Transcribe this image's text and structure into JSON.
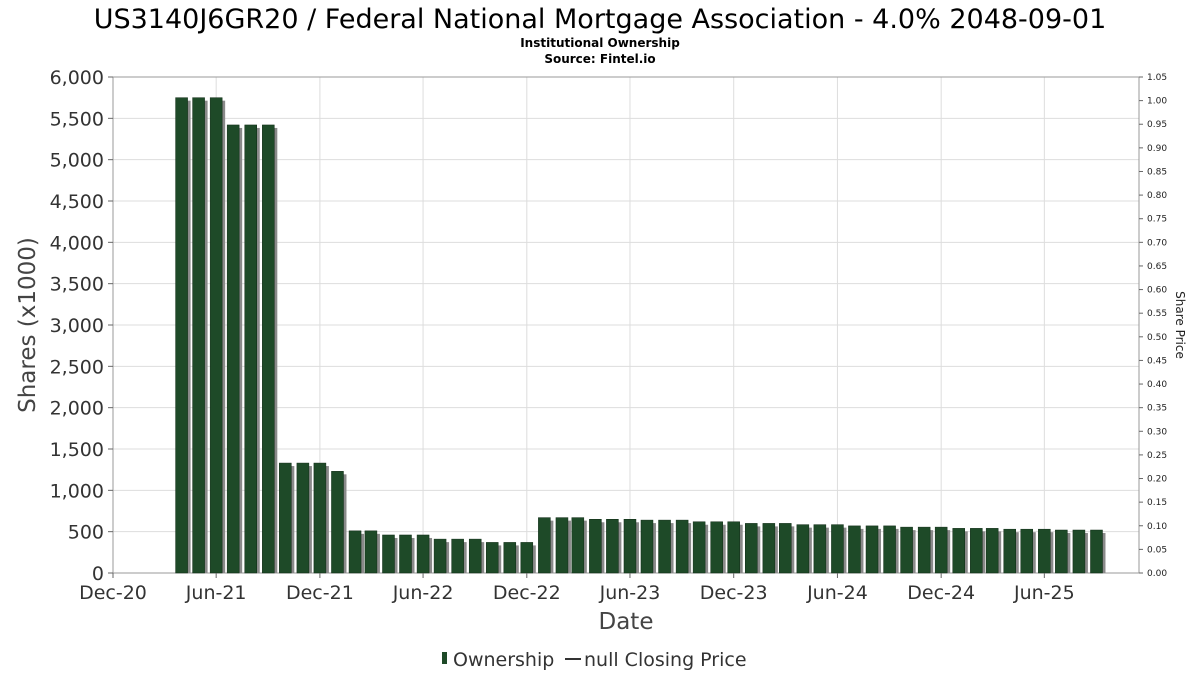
{
  "chart_data": {
    "type": "bar",
    "title": "US3140J6GR20 / Federal National Mortgage Association - 4.0% 2048-09-01",
    "subtitle": "Institutional Ownership",
    "source": "Source: Fintel.io",
    "xlabel": "Date",
    "ylabel": "Shares (x1000)",
    "y2label": "Share Price",
    "ylim": [
      0,
      6000
    ],
    "y2lim": [
      0,
      1.05
    ],
    "xlim": [
      "2020-12-01",
      "2025-11-15"
    ],
    "grid": true,
    "yticks": [
      "0",
      "500",
      "1,000",
      "1,500",
      "2,000",
      "2,500",
      "3,000",
      "3,500",
      "4,000",
      "4,500",
      "5,000",
      "5,500",
      "6,000"
    ],
    "y2ticks": [
      "0.00",
      "0.05",
      "0.10",
      "0.15",
      "0.20",
      "0.25",
      "0.30",
      "0.35",
      "0.40",
      "0.45",
      "0.50",
      "0.55",
      "0.60",
      "0.65",
      "0.70",
      "0.75",
      "0.80",
      "0.85",
      "0.90",
      "0.95",
      "1.00",
      "1.05"
    ],
    "xticks": [
      {
        "label": "Dec-20",
        "date": "2020-12-01"
      },
      {
        "label": "Jun-21",
        "date": "2021-06-01"
      },
      {
        "label": "Dec-21",
        "date": "2021-12-01"
      },
      {
        "label": "Jun-22",
        "date": "2022-06-01"
      },
      {
        "label": "Dec-22",
        "date": "2022-12-01"
      },
      {
        "label": "Jun-23",
        "date": "2023-06-01"
      },
      {
        "label": "Dec-23",
        "date": "2023-12-01"
      },
      {
        "label": "Jun-24",
        "date": "2024-06-01"
      },
      {
        "label": "Dec-24",
        "date": "2024-12-01"
      },
      {
        "label": "Jun-25",
        "date": "2025-06-01"
      }
    ],
    "series": [
      {
        "name": "Ownership",
        "color": "#1e4a28",
        "points": [
          {
            "x": "2021-04-01",
            "y": 5750
          },
          {
            "x": "2021-05-01",
            "y": 5750
          },
          {
            "x": "2021-06-01",
            "y": 5750
          },
          {
            "x": "2021-07-01",
            "y": 5420
          },
          {
            "x": "2021-08-01",
            "y": 5420
          },
          {
            "x": "2021-09-01",
            "y": 5420
          },
          {
            "x": "2021-10-01",
            "y": 1330
          },
          {
            "x": "2021-11-01",
            "y": 1330
          },
          {
            "x": "2021-12-01",
            "y": 1330
          },
          {
            "x": "2022-01-01",
            "y": 1230
          },
          {
            "x": "2022-02-01",
            "y": 510
          },
          {
            "x": "2022-03-01",
            "y": 510
          },
          {
            "x": "2022-04-01",
            "y": 460
          },
          {
            "x": "2022-05-01",
            "y": 460
          },
          {
            "x": "2022-06-01",
            "y": 460
          },
          {
            "x": "2022-07-01",
            "y": 410
          },
          {
            "x": "2022-08-01",
            "y": 410
          },
          {
            "x": "2022-09-01",
            "y": 410
          },
          {
            "x": "2022-10-01",
            "y": 370
          },
          {
            "x": "2022-11-01",
            "y": 370
          },
          {
            "x": "2022-12-01",
            "y": 370
          },
          {
            "x": "2023-01-01",
            "y": 670
          },
          {
            "x": "2023-02-01",
            "y": 670
          },
          {
            "x": "2023-03-01",
            "y": 670
          },
          {
            "x": "2023-04-01",
            "y": 650
          },
          {
            "x": "2023-05-01",
            "y": 650
          },
          {
            "x": "2023-06-01",
            "y": 650
          },
          {
            "x": "2023-07-01",
            "y": 640
          },
          {
            "x": "2023-08-01",
            "y": 640
          },
          {
            "x": "2023-09-01",
            "y": 640
          },
          {
            "x": "2023-10-01",
            "y": 620
          },
          {
            "x": "2023-11-01",
            "y": 620
          },
          {
            "x": "2023-12-01",
            "y": 620
          },
          {
            "x": "2024-01-01",
            "y": 600
          },
          {
            "x": "2024-02-01",
            "y": 600
          },
          {
            "x": "2024-03-01",
            "y": 600
          },
          {
            "x": "2024-04-01",
            "y": 585
          },
          {
            "x": "2024-05-01",
            "y": 585
          },
          {
            "x": "2024-06-01",
            "y": 585
          },
          {
            "x": "2024-07-01",
            "y": 570
          },
          {
            "x": "2024-08-01",
            "y": 570
          },
          {
            "x": "2024-09-01",
            "y": 570
          },
          {
            "x": "2024-10-01",
            "y": 555
          },
          {
            "x": "2024-11-01",
            "y": 555
          },
          {
            "x": "2024-12-01",
            "y": 555
          },
          {
            "x": "2025-01-01",
            "y": 540
          },
          {
            "x": "2025-02-01",
            "y": 540
          },
          {
            "x": "2025-03-01",
            "y": 540
          },
          {
            "x": "2025-04-01",
            "y": 530
          },
          {
            "x": "2025-05-01",
            "y": 530
          },
          {
            "x": "2025-06-01",
            "y": 530
          },
          {
            "x": "2025-07-01",
            "y": 520
          },
          {
            "x": "2025-08-01",
            "y": 520
          },
          {
            "x": "2025-09-01",
            "y": 520
          }
        ]
      }
    ],
    "legend": {
      "placement": "bottom",
      "items": [
        {
          "label": "Ownership",
          "marker": "bar",
          "color": "#1e4a28"
        },
        {
          "label": "null Closing Price",
          "marker": "line",
          "color": "#333333"
        }
      ]
    }
  }
}
